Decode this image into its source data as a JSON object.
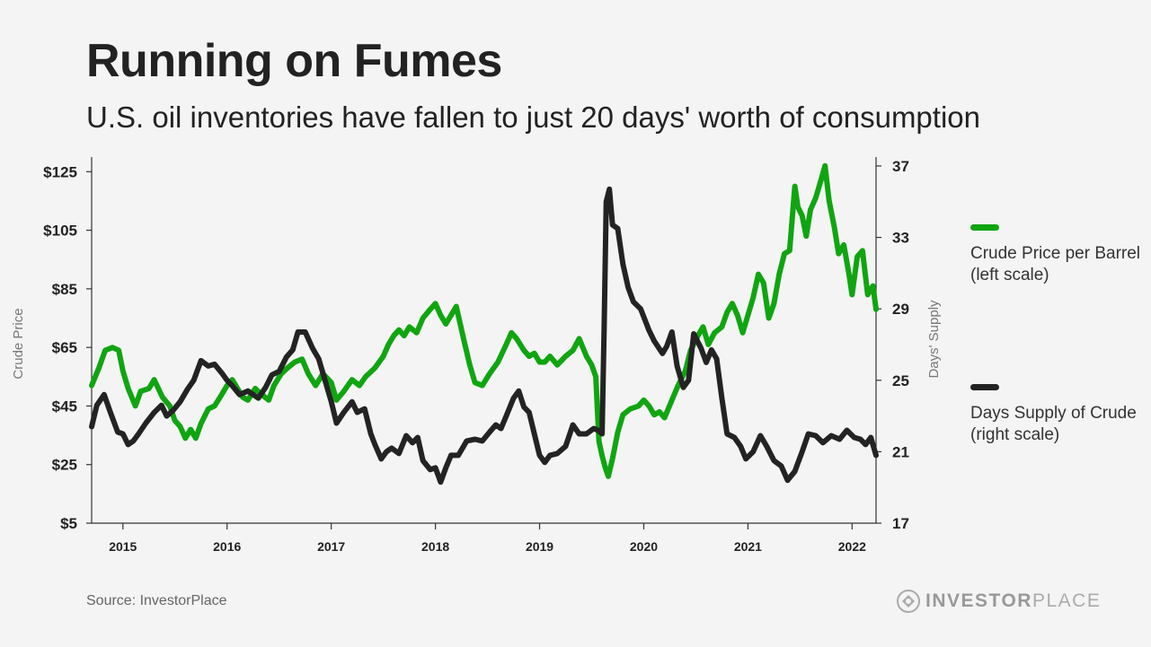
{
  "header": {
    "title": "Running on Fumes",
    "subtitle": "U.S. oil inventories have fallen to just 20 days' worth of consumption"
  },
  "footer": {
    "source": "Source: InvestorPlace",
    "logo_strong": "INVESTOR",
    "logo_light": "PLACE"
  },
  "legend": {
    "price": "Crude Price per Barrel (left scale)",
    "supply": "Days Supply of Crude (right scale)"
  },
  "colors": {
    "price": "#10a510",
    "supply": "#232323"
  },
  "chart_data": {
    "type": "line",
    "ylabel_left": "Crude Price",
    "ylabel_right": "Days' Supply",
    "xlim": [
      2014.7,
      2022.23
    ],
    "ylim_left": [
      5,
      130
    ],
    "ylim_right": [
      17,
      37.5
    ],
    "x_ticks": [
      2015,
      2016,
      2017,
      2018,
      2019,
      2020,
      2021,
      2022
    ],
    "x_tick_labels": [
      "2015",
      "2016",
      "2017",
      "2018",
      "2019",
      "2020",
      "2021",
      "2022"
    ],
    "y_left_ticks": [
      5,
      25,
      45,
      65,
      85,
      105,
      125
    ],
    "y_left_tick_labels": [
      "$5",
      "$25",
      "$45",
      "$65",
      "$85",
      "$105",
      "$125"
    ],
    "y_right_ticks": [
      17,
      21,
      25,
      29,
      33,
      37
    ],
    "y_right_tick_labels": [
      "17",
      "21",
      "25",
      "29",
      "33",
      "37"
    ],
    "series": [
      {
        "name": "Crude Price per Barrel (left scale)",
        "axis": "left",
        "points": [
          [
            2014.7,
            52
          ],
          [
            2014.77,
            58
          ],
          [
            2014.83,
            64
          ],
          [
            2014.9,
            65
          ],
          [
            2014.96,
            64
          ],
          [
            2015.0,
            57
          ],
          [
            2015.05,
            51
          ],
          [
            2015.12,
            45
          ],
          [
            2015.17,
            50
          ],
          [
            2015.25,
            51
          ],
          [
            2015.3,
            54
          ],
          [
            2015.38,
            48
          ],
          [
            2015.45,
            45
          ],
          [
            2015.5,
            40
          ],
          [
            2015.55,
            38
          ],
          [
            2015.6,
            34
          ],
          [
            2015.65,
            37
          ],
          [
            2015.7,
            34
          ],
          [
            2015.75,
            39
          ],
          [
            2015.82,
            44
          ],
          [
            2015.88,
            45
          ],
          [
            2015.95,
            49
          ],
          [
            2016.0,
            52
          ],
          [
            2016.05,
            54
          ],
          [
            2016.1,
            51
          ],
          [
            2016.15,
            48
          ],
          [
            2016.2,
            47
          ],
          [
            2016.27,
            51
          ],
          [
            2016.33,
            49
          ],
          [
            2016.4,
            47
          ],
          [
            2016.45,
            52
          ],
          [
            2016.52,
            56
          ],
          [
            2016.58,
            58
          ],
          [
            2016.65,
            60
          ],
          [
            2016.72,
            61
          ],
          [
            2016.78,
            56
          ],
          [
            2016.85,
            52
          ],
          [
            2016.92,
            56
          ],
          [
            2017.0,
            53
          ],
          [
            2017.05,
            47
          ],
          [
            2017.12,
            50
          ],
          [
            2017.2,
            54
          ],
          [
            2017.27,
            52
          ],
          [
            2017.33,
            55
          ],
          [
            2017.42,
            58
          ],
          [
            2017.5,
            62
          ],
          [
            2017.55,
            66
          ],
          [
            2017.6,
            69
          ],
          [
            2017.65,
            71
          ],
          [
            2017.7,
            69
          ],
          [
            2017.75,
            72
          ],
          [
            2017.82,
            70
          ],
          [
            2017.88,
            75
          ],
          [
            2017.95,
            78
          ],
          [
            2018.0,
            80
          ],
          [
            2018.05,
            76
          ],
          [
            2018.1,
            73
          ],
          [
            2018.15,
            76
          ],
          [
            2018.2,
            79
          ],
          [
            2018.27,
            68
          ],
          [
            2018.33,
            59
          ],
          [
            2018.38,
            53
          ],
          [
            2018.45,
            52
          ],
          [
            2018.52,
            56
          ],
          [
            2018.6,
            60
          ],
          [
            2018.68,
            66
          ],
          [
            2018.73,
            70
          ],
          [
            2018.78,
            68
          ],
          [
            2018.85,
            64
          ],
          [
            2018.9,
            62
          ],
          [
            2018.95,
            63
          ],
          [
            2019.0,
            60
          ],
          [
            2019.05,
            60
          ],
          [
            2019.1,
            62
          ],
          [
            2019.17,
            59
          ],
          [
            2019.25,
            62
          ],
          [
            2019.32,
            64
          ],
          [
            2019.38,
            68
          ],
          [
            2019.45,
            62
          ],
          [
            2019.5,
            59
          ],
          [
            2019.54,
            55
          ],
          [
            2019.57,
            33
          ],
          [
            2019.6,
            28
          ],
          [
            2019.63,
            24
          ],
          [
            2019.66,
            21
          ],
          [
            2019.7,
            27
          ],
          [
            2019.75,
            36
          ],
          [
            2019.8,
            42
          ],
          [
            2019.87,
            44
          ],
          [
            2019.95,
            45
          ],
          [
            2020.0,
            47
          ],
          [
            2020.05,
            45
          ],
          [
            2020.1,
            42
          ],
          [
            2020.15,
            43
          ],
          [
            2020.2,
            41
          ],
          [
            2020.27,
            47
          ],
          [
            2020.33,
            52
          ],
          [
            2020.4,
            57
          ],
          [
            2020.45,
            64
          ],
          [
            2020.52,
            69
          ],
          [
            2020.57,
            72
          ],
          [
            2020.62,
            66
          ],
          [
            2020.68,
            70
          ],
          [
            2020.75,
            72
          ],
          [
            2020.8,
            77
          ],
          [
            2020.85,
            80
          ],
          [
            2020.9,
            76
          ],
          [
            2020.95,
            70
          ],
          [
            2021.0,
            76
          ],
          [
            2021.05,
            82
          ],
          [
            2021.1,
            90
          ],
          [
            2021.15,
            87
          ],
          [
            2021.2,
            75
          ],
          [
            2021.25,
            80
          ],
          [
            2021.3,
            90
          ],
          [
            2021.35,
            97
          ],
          [
            2021.4,
            98
          ],
          [
            2021.45,
            120
          ],
          [
            2021.48,
            113
          ],
          [
            2021.52,
            110
          ],
          [
            2021.56,
            103
          ],
          [
            2021.6,
            112
          ],
          [
            2021.65,
            116
          ],
          [
            2021.7,
            122
          ],
          [
            2021.74,
            127
          ],
          [
            2021.78,
            115
          ],
          [
            2021.83,
            106
          ],
          [
            2021.87,
            97
          ],
          [
            2021.92,
            100
          ],
          [
            2021.97,
            90
          ],
          [
            2022.0,
            83
          ],
          [
            2022.05,
            96
          ],
          [
            2022.1,
            98
          ],
          [
            2022.15,
            83
          ],
          [
            2022.2,
            86
          ],
          [
            2022.23,
            78
          ]
        ]
      },
      {
        "name": "Days Supply of Crude (right scale)",
        "axis": "right",
        "points": [
          [
            2014.7,
            22.4
          ],
          [
            2014.75,
            23.6
          ],
          [
            2014.82,
            24.2
          ],
          [
            2014.88,
            23.2
          ],
          [
            2014.95,
            22.1
          ],
          [
            2015.0,
            22.0
          ],
          [
            2015.05,
            21.4
          ],
          [
            2015.1,
            21.6
          ],
          [
            2015.15,
            22.0
          ],
          [
            2015.22,
            22.6
          ],
          [
            2015.3,
            23.2
          ],
          [
            2015.37,
            23.6
          ],
          [
            2015.42,
            23.0
          ],
          [
            2015.48,
            23.3
          ],
          [
            2015.55,
            23.8
          ],
          [
            2015.62,
            24.5
          ],
          [
            2015.68,
            25.0
          ],
          [
            2015.75,
            26.1
          ],
          [
            2015.82,
            25.8
          ],
          [
            2015.88,
            25.9
          ],
          [
            2015.95,
            25.4
          ],
          [
            2016.0,
            25.0
          ],
          [
            2016.05,
            24.7
          ],
          [
            2016.12,
            24.2
          ],
          [
            2016.2,
            24.4
          ],
          [
            2016.3,
            24.0
          ],
          [
            2016.37,
            24.6
          ],
          [
            2016.43,
            25.3
          ],
          [
            2016.5,
            25.5
          ],
          [
            2016.57,
            26.3
          ],
          [
            2016.63,
            26.7
          ],
          [
            2016.68,
            27.7
          ],
          [
            2016.75,
            27.7
          ],
          [
            2016.82,
            26.8
          ],
          [
            2016.88,
            26.2
          ],
          [
            2016.95,
            24.8
          ],
          [
            2017.0,
            23.8
          ],
          [
            2017.05,
            22.6
          ],
          [
            2017.12,
            23.2
          ],
          [
            2017.2,
            23.8
          ],
          [
            2017.25,
            23.2
          ],
          [
            2017.32,
            23.4
          ],
          [
            2017.38,
            22.0
          ],
          [
            2017.42,
            21.4
          ],
          [
            2017.48,
            20.6
          ],
          [
            2017.53,
            21.0
          ],
          [
            2017.58,
            21.2
          ],
          [
            2017.65,
            20.9
          ],
          [
            2017.72,
            21.9
          ],
          [
            2017.78,
            21.5
          ],
          [
            2017.83,
            21.8
          ],
          [
            2017.88,
            20.5
          ],
          [
            2017.95,
            20.0
          ],
          [
            2018.0,
            20.1
          ],
          [
            2018.05,
            19.3
          ],
          [
            2018.1,
            20.1
          ],
          [
            2018.15,
            20.8
          ],
          [
            2018.22,
            20.8
          ],
          [
            2018.3,
            21.6
          ],
          [
            2018.38,
            21.7
          ],
          [
            2018.45,
            21.6
          ],
          [
            2018.52,
            22.1
          ],
          [
            2018.58,
            22.5
          ],
          [
            2018.63,
            22.3
          ],
          [
            2018.68,
            23.0
          ],
          [
            2018.75,
            24.0
          ],
          [
            2018.8,
            24.4
          ],
          [
            2018.85,
            23.5
          ],
          [
            2018.9,
            23.2
          ],
          [
            2018.95,
            22.0
          ],
          [
            2019.0,
            20.8
          ],
          [
            2019.05,
            20.4
          ],
          [
            2019.1,
            20.8
          ],
          [
            2019.17,
            20.9
          ],
          [
            2019.25,
            21.3
          ],
          [
            2019.32,
            22.5
          ],
          [
            2019.38,
            22.0
          ],
          [
            2019.45,
            22.0
          ],
          [
            2019.52,
            22.3
          ],
          [
            2019.56,
            22.2
          ],
          [
            2019.6,
            22.0
          ],
          [
            2019.62,
            28.0
          ],
          [
            2019.64,
            35.0
          ],
          [
            2019.67,
            35.7
          ],
          [
            2019.7,
            33.7
          ],
          [
            2019.75,
            33.5
          ],
          [
            2019.8,
            31.5
          ],
          [
            2019.85,
            30.2
          ],
          [
            2019.9,
            29.4
          ],
          [
            2019.97,
            29.0
          ],
          [
            2020.05,
            27.8
          ],
          [
            2020.1,
            27.2
          ],
          [
            2020.18,
            26.5
          ],
          [
            2020.22,
            26.9
          ],
          [
            2020.27,
            27.7
          ],
          [
            2020.32,
            25.8
          ],
          [
            2020.38,
            24.6
          ],
          [
            2020.43,
            25.0
          ],
          [
            2020.48,
            27.6
          ],
          [
            2020.55,
            26.8
          ],
          [
            2020.6,
            26.0
          ],
          [
            2020.65,
            26.7
          ],
          [
            2020.7,
            26.2
          ],
          [
            2020.75,
            24.0
          ],
          [
            2020.8,
            22.0
          ],
          [
            2020.87,
            21.8
          ],
          [
            2020.93,
            21.3
          ],
          [
            2020.98,
            20.6
          ],
          [
            2021.05,
            21.0
          ],
          [
            2021.12,
            21.9
          ],
          [
            2021.18,
            21.3
          ],
          [
            2021.25,
            20.5
          ],
          [
            2021.32,
            20.2
          ],
          [
            2021.38,
            19.4
          ],
          [
            2021.45,
            19.9
          ],
          [
            2021.52,
            21.0
          ],
          [
            2021.58,
            22.0
          ],
          [
            2021.65,
            21.9
          ],
          [
            2021.72,
            21.5
          ],
          [
            2021.8,
            21.9
          ],
          [
            2021.88,
            21.7
          ],
          [
            2021.95,
            22.2
          ],
          [
            2022.02,
            21.8
          ],
          [
            2022.08,
            21.7
          ],
          [
            2022.13,
            21.4
          ],
          [
            2022.18,
            21.8
          ],
          [
            2022.23,
            20.8
          ]
        ]
      }
    ]
  }
}
